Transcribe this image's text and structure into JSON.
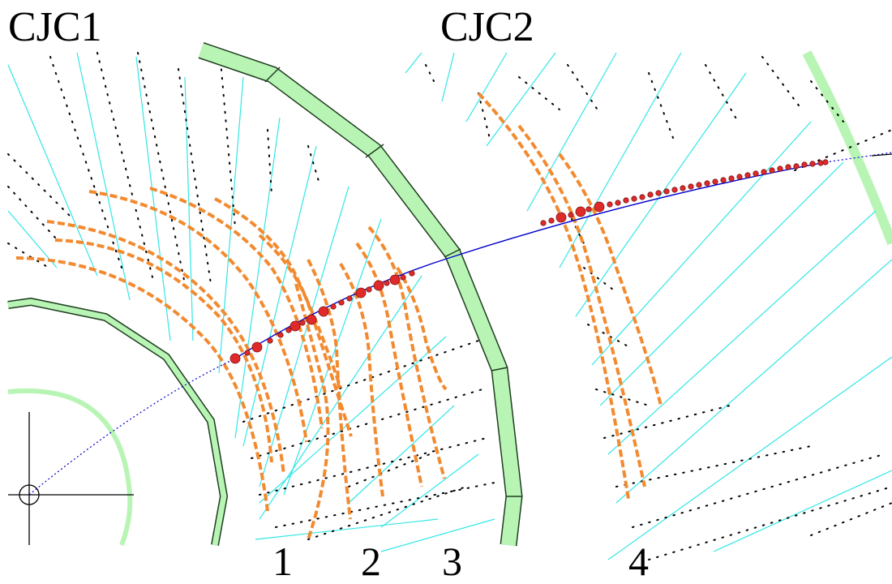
{
  "labels": {
    "chamber_left": "CJC1",
    "chamber_right": "CJC2",
    "markers": [
      "1",
      "2",
      "3",
      "4"
    ]
  },
  "colors": {
    "chamber_wall_fill": "#b8f5b5",
    "chamber_wall_stroke": "#1f3d1f",
    "outer_arc": "#b8f5b5",
    "cell_lines": "#33e6e6",
    "sense_wire_dots": "#000000",
    "drift_hits": "#f28a30",
    "track": "#0000cc",
    "track_points": "#e02a2a",
    "track_points_stroke": "#7a1010",
    "axes": "#000000"
  }
}
